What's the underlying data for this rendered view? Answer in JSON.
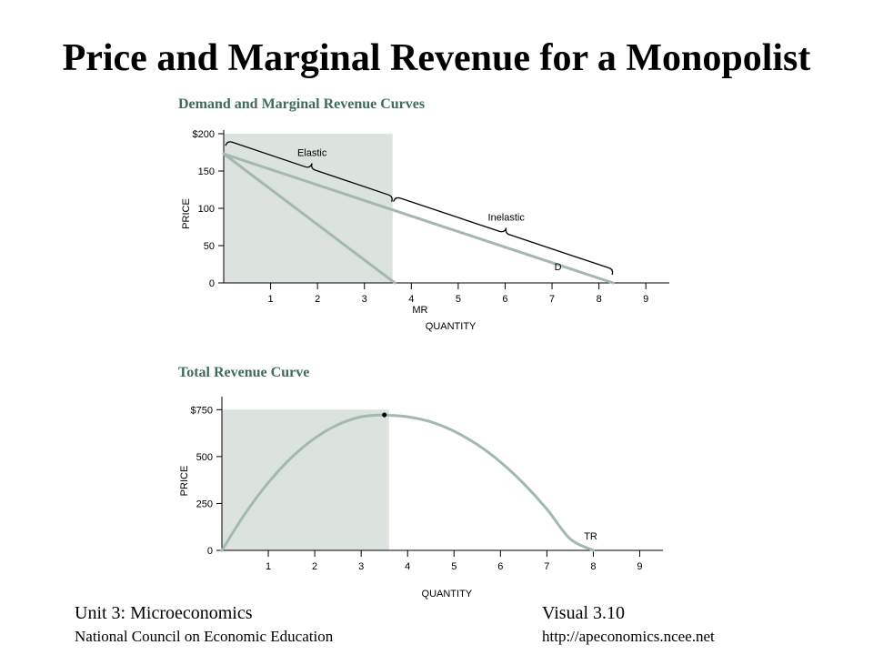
{
  "slide": {
    "title": "Price and Marginal Revenue for a Monopolist"
  },
  "footer": {
    "unit": "Unit 3: Microeconomics",
    "org": "National Council on Economic Education",
    "visual": "Visual 3.10",
    "url": "http://apeconomics.ncee.net"
  },
  "colors": {
    "curve": "#a3b8ae",
    "shade": "#dce2de",
    "heading": "#3f6b5e",
    "axis": "#000000"
  },
  "chart_data": [
    {
      "type": "line",
      "title": "Demand and Marginal Revenue Curves",
      "xlabel": "QUANTITY",
      "ylabel": "PRICE",
      "xlim": [
        0,
        9.5
      ],
      "ylim": [
        0,
        200
      ],
      "x_ticks": [
        "1",
        "2",
        "3",
        "4",
        "5",
        "6",
        "7",
        "8",
        "9"
      ],
      "y_ticks": [
        {
          "value": 0,
          "label": "0"
        },
        {
          "value": 50,
          "label": "50"
        },
        {
          "value": 100,
          "label": "100"
        },
        {
          "value": 150,
          "label": "150"
        },
        {
          "value": 200,
          "label": "$200"
        }
      ],
      "shaded_region": {
        "x": [
          0,
          3.6
        ],
        "y": [
          0,
          200
        ]
      },
      "series": [
        {
          "name": "D",
          "x": [
            0,
            8.3
          ],
          "y": [
            173,
            0
          ]
        },
        {
          "name": "MR",
          "x": [
            0,
            3.65
          ],
          "y": [
            173,
            0
          ]
        }
      ],
      "annotations": [
        {
          "text": "Elastic",
          "x_from": 0,
          "x_to": 3.6
        },
        {
          "text": "Inelastic",
          "x_from": 3.6,
          "x_to": 8.3
        }
      ]
    },
    {
      "type": "line",
      "title": "Total Revenue Curve",
      "xlabel": "QUANTITY",
      "ylabel": "PRICE",
      "xlim": [
        0,
        9.5
      ],
      "ylim": [
        0,
        800
      ],
      "x_ticks": [
        "1",
        "2",
        "3",
        "4",
        "5",
        "6",
        "7",
        "8",
        "9"
      ],
      "y_ticks": [
        {
          "value": 0,
          "label": "0"
        },
        {
          "value": 250,
          "label": "250"
        },
        {
          "value": 500,
          "label": "500"
        },
        {
          "value": 750,
          "label": "$750"
        }
      ],
      "shaded_region": {
        "x": [
          0,
          3.6
        ],
        "y": [
          0,
          750
        ]
      },
      "series": [
        {
          "name": "TR",
          "x": [
            0,
            0.5,
            1,
            1.5,
            2,
            2.5,
            3,
            3.5,
            3.6,
            4,
            4.5,
            5,
            5.5,
            6,
            6.5,
            7,
            7.5,
            8
          ],
          "y": [
            0,
            196,
            361,
            495,
            598,
            670,
            712,
            722,
            720,
            712,
            685,
            635,
            564,
            471,
            356,
            220,
            62,
            0
          ]
        }
      ],
      "points": [
        {
          "x": 3.5,
          "y": 722
        }
      ]
    }
  ]
}
